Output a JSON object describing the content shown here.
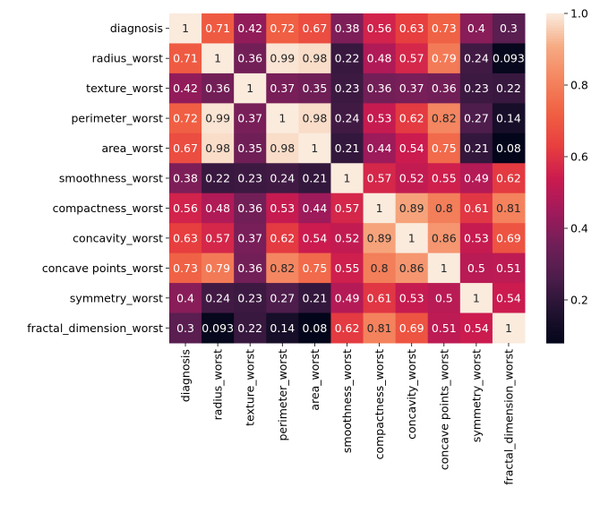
{
  "chart_data": {
    "type": "heatmap",
    "title": "",
    "xlabel": "",
    "ylabel": "",
    "labels": [
      "diagnosis",
      "radius_worst",
      "texture_worst",
      "perimeter_worst",
      "area_worst",
      "smoothness_worst",
      "compactness_worst",
      "concavity_worst",
      "concave points_worst",
      "symmetry_worst",
      "fractal_dimension_worst"
    ],
    "values": [
      [
        1,
        0.71,
        0.42,
        0.72,
        0.67,
        0.38,
        0.56,
        0.63,
        0.73,
        0.4,
        0.3
      ],
      [
        0.71,
        1,
        0.36,
        0.99,
        0.98,
        0.22,
        0.48,
        0.57,
        0.79,
        0.24,
        0.093
      ],
      [
        0.42,
        0.36,
        1,
        0.37,
        0.35,
        0.23,
        0.36,
        0.37,
        0.36,
        0.23,
        0.22
      ],
      [
        0.72,
        0.99,
        0.37,
        1,
        0.98,
        0.24,
        0.53,
        0.62,
        0.82,
        0.27,
        0.14
      ],
      [
        0.67,
        0.98,
        0.35,
        0.98,
        1,
        0.21,
        0.44,
        0.54,
        0.75,
        0.21,
        0.08
      ],
      [
        0.38,
        0.22,
        0.23,
        0.24,
        0.21,
        1,
        0.57,
        0.52,
        0.55,
        0.49,
        0.62
      ],
      [
        0.56,
        0.48,
        0.36,
        0.53,
        0.44,
        0.57,
        1,
        0.89,
        0.8,
        0.61,
        0.81
      ],
      [
        0.63,
        0.57,
        0.37,
        0.62,
        0.54,
        0.52,
        0.89,
        1,
        0.86,
        0.53,
        0.69
      ],
      [
        0.73,
        0.79,
        0.36,
        0.82,
        0.75,
        0.55,
        0.8,
        0.86,
        1,
        0.5,
        0.51
      ],
      [
        0.4,
        0.24,
        0.23,
        0.27,
        0.21,
        0.49,
        0.61,
        0.53,
        0.5,
        1,
        0.54
      ],
      [
        0.3,
        0.093,
        0.22,
        0.14,
        0.08,
        0.62,
        0.81,
        0.69,
        0.51,
        0.54,
        1
      ]
    ],
    "annotated": true,
    "colormap": "rocket",
    "vmin": 0.08,
    "vmax": 1.0,
    "colorbar": {
      "ticks": [
        "0.2",
        "0.4",
        "0.6",
        "0.8",
        "1.0"
      ],
      "placement": "right"
    }
  }
}
